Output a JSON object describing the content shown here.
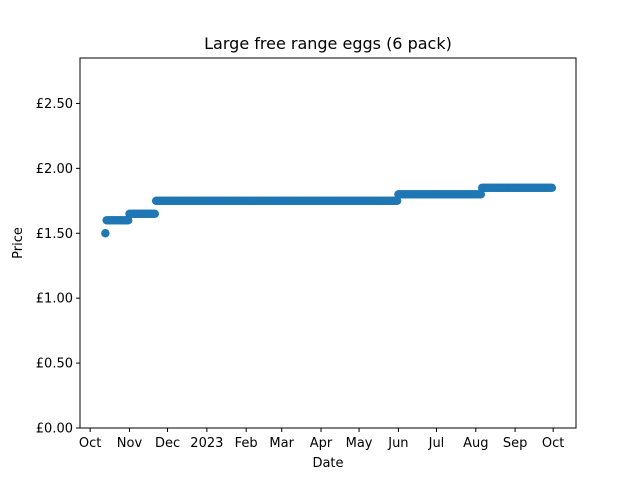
{
  "chart_data": {
    "type": "scatter",
    "title": "Large free range eggs (6 pack)",
    "xlabel": "Date",
    "ylabel": "Price",
    "x_tick_labels": [
      "Oct",
      "Nov",
      "Dec",
      "2023",
      "Feb",
      "Mar",
      "Apr",
      "May",
      "Jun",
      "Jul",
      "Aug",
      "Sep",
      "Oct"
    ],
    "x_tick_dates": [
      "2022-10-01",
      "2022-11-01",
      "2022-12-01",
      "2023-01-01",
      "2023-02-01",
      "2023-03-01",
      "2023-04-01",
      "2023-05-01",
      "2023-06-01",
      "2023-07-01",
      "2023-08-01",
      "2023-09-01",
      "2023-10-01"
    ],
    "xlim": [
      "2022-09-23",
      "2023-10-19"
    ],
    "y_ticks": [
      0,
      0.5,
      1.0,
      1.5,
      2.0,
      2.5
    ],
    "y_tick_labels": [
      "£0.00",
      "£0.50",
      "£1.00",
      "£1.50",
      "£2.00",
      "£2.50"
    ],
    "ylim": [
      0,
      2.85
    ],
    "color": "#1f77b4",
    "segments": [
      {
        "start": "2022-10-13",
        "end": "2022-10-13",
        "price": 1.5
      },
      {
        "start": "2022-10-14",
        "end": "2022-10-31",
        "price": 1.6
      },
      {
        "start": "2022-11-01",
        "end": "2022-11-21",
        "price": 1.65
      },
      {
        "start": "2022-11-22",
        "end": "2023-05-31",
        "price": 1.75
      },
      {
        "start": "2023-06-01",
        "end": "2023-08-05",
        "price": 1.8
      },
      {
        "start": "2023-08-06",
        "end": "2023-09-30",
        "price": 1.85
      }
    ]
  }
}
